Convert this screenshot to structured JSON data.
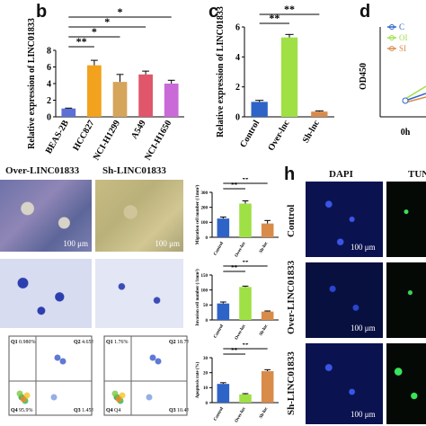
{
  "panel_letters": {
    "b": "b",
    "c": "c",
    "d": "d",
    "h": "h"
  },
  "headers": {
    "over": "Over-LINC01833",
    "sh": "Sh-LINC01833",
    "dapi": "DAPI",
    "tun": "TUN"
  },
  "scale_bar": "100 μm",
  "h_rows": [
    "Control",
    "Over-LINC01833",
    "Sh-LINC01833"
  ],
  "flow_quadrants": {
    "left": {
      "q1": "Q1",
      "q2": "Q2",
      "q3": "Q3",
      "q4": "Q4",
      "q1v": "0.980%",
      "q2v": "4.65%",
      "q3v": "1.45%",
      "q4v": "95.9%"
    },
    "right": {
      "q1": "Q1",
      "q2": "Q2",
      "q3": "Q3",
      "q4": "Q4",
      "q1v": "1.76%",
      "q2v": "18.7%",
      "q3v": "10.4%",
      "q4v": "Q4"
    }
  },
  "chart_data": [
    {
      "id": "b",
      "type": "bar",
      "categories": [
        "BEAS-2B",
        "HCC827",
        "NCI-H1299",
        "A549",
        "NCI-H1650"
      ],
      "values": [
        1.0,
        6.2,
        4.2,
        5.1,
        4.0
      ],
      "errors": [
        0.05,
        0.6,
        0.9,
        0.4,
        0.4
      ],
      "colors": [
        "#5b6fd6",
        "#f2a21c",
        "#d4a55a",
        "#e0566a",
        "#c96ad8"
      ],
      "ylabel": "Relative expression of LINC01833",
      "ylim": [
        0,
        8
      ],
      "yticks": [
        0,
        2,
        4,
        6,
        8
      ],
      "sig": [
        {
          "from": 0,
          "to": 1,
          "label": "**"
        },
        {
          "from": 0,
          "to": 2,
          "label": "*"
        },
        {
          "from": 0,
          "to": 3,
          "label": "*"
        },
        {
          "from": 0,
          "to": 4,
          "label": "*"
        }
      ]
    },
    {
      "id": "c",
      "type": "bar",
      "categories": [
        "Control",
        "Over-lnc",
        "Sh-lnc"
      ],
      "values": [
        1.0,
        5.3,
        0.35
      ],
      "errors": [
        0.1,
        0.2,
        0.05
      ],
      "colors": [
        "#2e63c7",
        "#9fe045",
        "#d98b4a"
      ],
      "ylabel": "Relative expression of LINC01833",
      "ylim": [
        0,
        6
      ],
      "yticks": [
        0,
        2,
        4,
        6
      ],
      "sig": [
        {
          "from": 0,
          "to": 1,
          "label": "**"
        },
        {
          "from": 0,
          "to": 2,
          "label": "**"
        }
      ]
    },
    {
      "id": "d",
      "type": "line",
      "ylabel": "OD450",
      "categories": [
        "0h"
      ],
      "legend": [
        "C",
        "OI",
        "SI"
      ],
      "colors": [
        "#2e63c7",
        "#9fe045",
        "#d98b4a"
      ]
    },
    {
      "id": "migration",
      "type": "bar",
      "categories": [
        "Control",
        "Over-lnc",
        "Sh-lnc"
      ],
      "values": [
        125,
        225,
        92
      ],
      "errors": [
        10,
        18,
        20
      ],
      "colors": [
        "#2e63c7",
        "#9fe045",
        "#d98b4a"
      ],
      "ylabel": "Migration cell number (/1mm²)",
      "ylim": [
        0,
        300
      ],
      "yticks": [
        0,
        100,
        200,
        300
      ],
      "sig": [
        {
          "from": 0,
          "to": 1,
          "label": "**"
        },
        {
          "from": 0,
          "to": 2,
          "label": "**"
        }
      ]
    },
    {
      "id": "invasion",
      "type": "bar",
      "categories": [
        "Control",
        "Over-lnc",
        "Sh-lnc"
      ],
      "values": [
        55,
        110,
        28
      ],
      "errors": [
        5,
        3,
        2
      ],
      "colors": [
        "#2e63c7",
        "#9fe045",
        "#d98b4a"
      ],
      "ylabel": "Invasion cell number (/1mm²)",
      "ylim": [
        0,
        150
      ],
      "yticks": [
        0,
        50,
        100,
        150
      ],
      "sig": [
        {
          "from": 0,
          "to": 1,
          "label": "**"
        },
        {
          "from": 0,
          "to": 2,
          "label": "**"
        }
      ]
    },
    {
      "id": "apoptosis",
      "type": "bar",
      "categories": [
        "Control",
        "Over-lnc",
        "Sh-lnc"
      ],
      "values": [
        12.5,
        5.5,
        21
      ],
      "errors": [
        0.8,
        0.5,
        1.0
      ],
      "colors": [
        "#2e63c7",
        "#9fe045",
        "#d98b4a"
      ],
      "ylabel": "Apoptosis rate (%)",
      "ylim": [
        0,
        30
      ],
      "yticks": [
        0,
        10,
        20,
        30
      ],
      "sig": [
        {
          "from": 0,
          "to": 1,
          "label": "**"
        },
        {
          "from": 0,
          "to": 2,
          "label": "**"
        }
      ]
    }
  ]
}
